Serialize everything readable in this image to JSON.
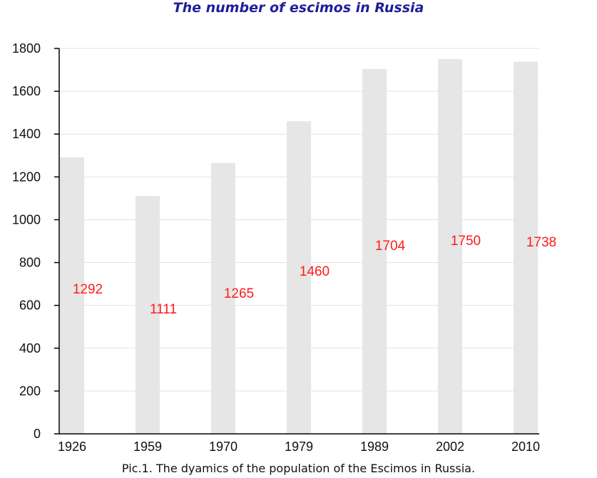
{
  "title": "The number of escimos in Russia",
  "caption": "Pic.1. The dyamics of the population of the Escimos in Russia.",
  "colors": {
    "bar": "#e6e6e6",
    "data_label": "#ff1a1a",
    "title": "#1f1f9a",
    "grid": "#e2e2e2",
    "axis": "#000000"
  },
  "chart_data": {
    "type": "bar",
    "title": "The number of escimos in Russia",
    "xlabel": "",
    "ylabel": "",
    "categories": [
      "1926",
      "1959",
      "1970",
      "1979",
      "1989",
      "2002",
      "2010"
    ],
    "values": [
      1292,
      1111,
      1265,
      1460,
      1704,
      1750,
      1738
    ],
    "data_labels": [
      "1292",
      "1111",
      "1265",
      "1460",
      "1704",
      "1750",
      "1738"
    ],
    "ylim": [
      0,
      1800
    ],
    "yticks": [
      "0",
      "200",
      "400",
      "600",
      "800",
      "1000",
      "1200",
      "1400",
      "1600",
      "1800"
    ],
    "grid": true,
    "legend": "none"
  }
}
